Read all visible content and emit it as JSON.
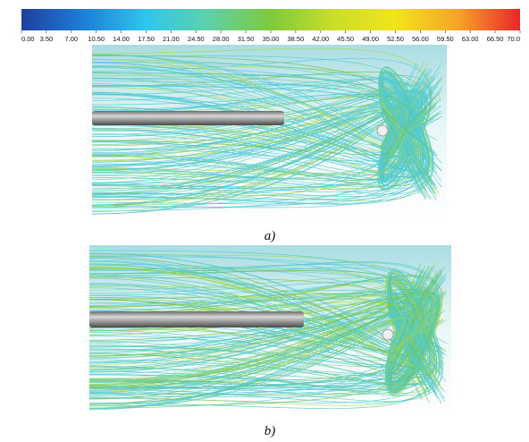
{
  "colorbar": {
    "range": [
      0,
      70
    ],
    "colors": [
      "#1f3f9f",
      "#1e7fd6",
      "#2ec6ee",
      "#5fd1a8",
      "#7ec93c",
      "#c9de2a",
      "#f2e51c",
      "#f6a428",
      "#e8262a"
    ],
    "ticks": [
      {
        "value": 0,
        "label": "0.00"
      },
      {
        "value": 3.5,
        "label": "3.50"
      },
      {
        "value": 7,
        "label": "7.00"
      },
      {
        "value": 10.5,
        "label": "10.50"
      },
      {
        "value": 14,
        "label": "14.00"
      },
      {
        "value": 17.5,
        "label": "17.50"
      },
      {
        "value": 21,
        "label": "21.00"
      },
      {
        "value": 24.5,
        "label": "24.50"
      },
      {
        "value": 28,
        "label": "28.00"
      },
      {
        "value": 31.5,
        "label": "31.50"
      },
      {
        "value": 35,
        "label": "35.00"
      },
      {
        "value": 38.5,
        "label": "38.50"
      },
      {
        "value": 42,
        "label": "42.00"
      },
      {
        "value": 45.5,
        "label": "45.50"
      },
      {
        "value": 49,
        "label": "49.00"
      },
      {
        "value": 52.5,
        "label": "52.50"
      },
      {
        "value": 56,
        "label": "56.00"
      },
      {
        "value": 59.5,
        "label": "59.50"
      },
      {
        "value": 63,
        "label": "63.00"
      },
      {
        "value": 66.5,
        "label": "66.50"
      },
      {
        "value": 70,
        "label": "70.0"
      }
    ]
  },
  "panels": [
    {
      "label": "a)"
    },
    {
      "label": "b)"
    }
  ]
}
